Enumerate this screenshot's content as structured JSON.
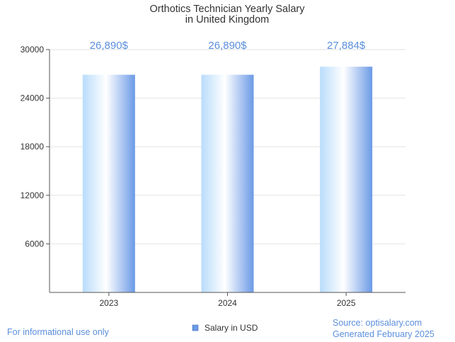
{
  "chart_data": {
    "type": "bar",
    "title_lines": [
      "Orthotics Technician Yearly Salary",
      "in United Kingdom"
    ],
    "categories": [
      "2023",
      "2024",
      "2025"
    ],
    "series": [
      {
        "name": "Salary in USD",
        "values": [
          26890,
          26890,
          27884
        ]
      }
    ],
    "data_labels": [
      "26,890$",
      "26,890$",
      "27,884$"
    ],
    "y_ticks": [
      6000,
      12000,
      18000,
      24000,
      30000
    ],
    "ylim": [
      0,
      30000
    ],
    "grid": true,
    "legend_position": "bottom-center",
    "colors": {
      "bar_light": "#ffffff",
      "bar_mid": "#c9e3fb",
      "bar_dark": "#6b9ae6",
      "label": "#5b8fdc",
      "legend_swatch": "#6b9ae6"
    }
  },
  "footer": {
    "left": "For informational use only",
    "source": "Source: optisalary.com",
    "generated": "Generated February 2025"
  }
}
